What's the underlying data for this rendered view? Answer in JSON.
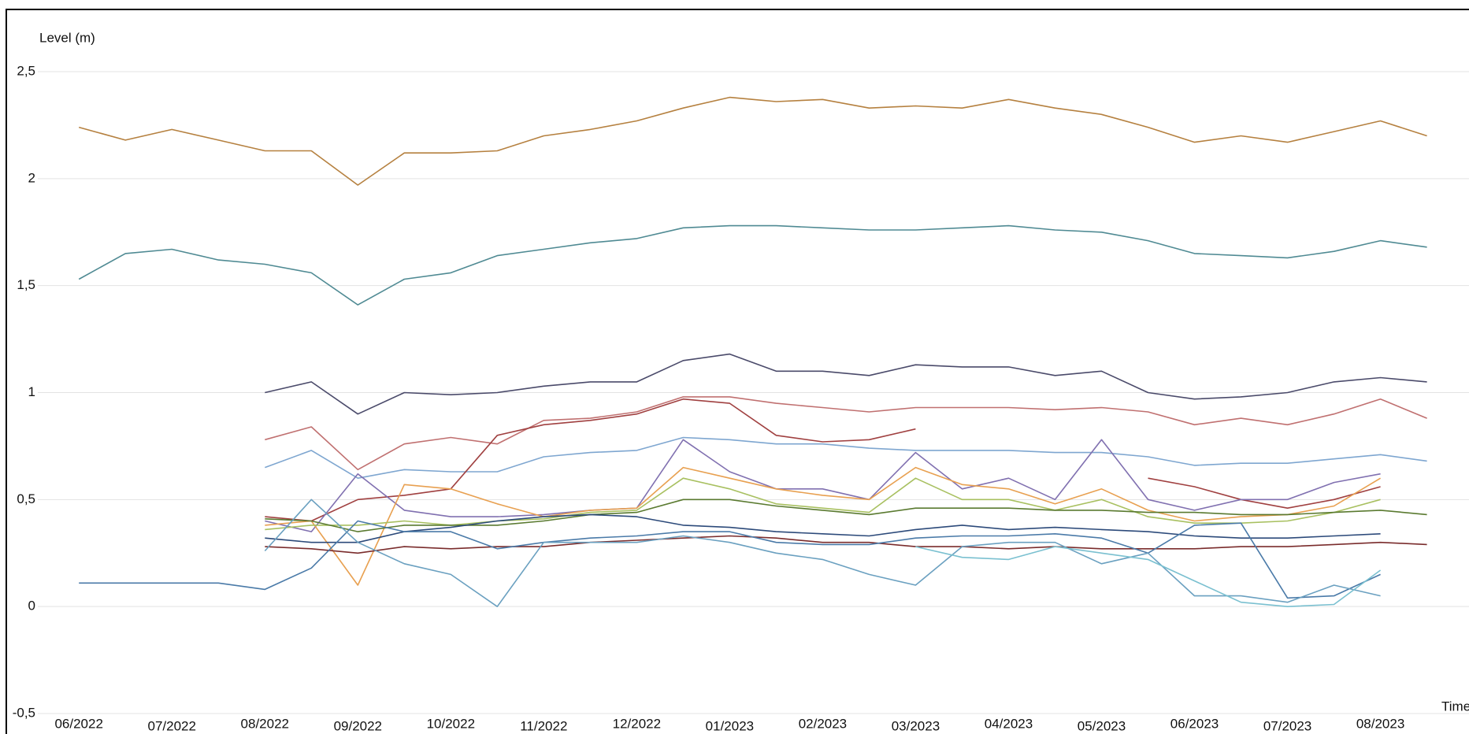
{
  "chart_data": {
    "type": "line",
    "y_label": "Level (m)",
    "x_label": "Time",
    "grid": true,
    "xlim": [
      -0.4,
      14.8
    ],
    "ylim": [
      -0.5,
      2.5
    ],
    "xticks": [
      {
        "value": 0,
        "label": "06/2022"
      },
      {
        "value": 1,
        "label": "07/2022"
      },
      {
        "value": 2,
        "label": "08/2022"
      },
      {
        "value": 3,
        "label": "09/2022"
      },
      {
        "value": 4,
        "label": "10/2022"
      },
      {
        "value": 5,
        "label": "11/2022"
      },
      {
        "value": 6,
        "label": "12/2022"
      },
      {
        "value": 7,
        "label": "01/2023"
      },
      {
        "value": 8,
        "label": "02/2023"
      },
      {
        "value": 9,
        "label": "03/2023"
      },
      {
        "value": 10,
        "label": "04/2023"
      },
      {
        "value": 11,
        "label": "05/2023"
      },
      {
        "value": 12,
        "label": "06/2023"
      },
      {
        "value": 13,
        "label": "07/2023"
      },
      {
        "value": 14,
        "label": "08/2023"
      }
    ],
    "yticks": [
      {
        "value": -0.5,
        "label": "-0,5"
      },
      0,
      {
        "value": 0.5,
        "label": "0,5"
      },
      1,
      {
        "value": 1.5,
        "label": "1,5"
      },
      2,
      {
        "value": 2.5,
        "label": "2,5"
      }
    ],
    "x": [
      0,
      0.5,
      1,
      1.5,
      2,
      2.5,
      3,
      3.5,
      4,
      4.5,
      5,
      5.5,
      6,
      6.5,
      7,
      7.5,
      8,
      8.5,
      9,
      9.5,
      10,
      10.5,
      11,
      11.5,
      12,
      12.5,
      13,
      13.5,
      14,
      14.5
    ],
    "series": [
      {
        "color": "#b5803f",
        "values": [
          2.24,
          2.18,
          2.23,
          2.18,
          2.13,
          2.13,
          1.97,
          2.12,
          2.12,
          2.13,
          2.2,
          2.23,
          2.27,
          2.33,
          2.38,
          2.36,
          2.37,
          2.33,
          2.34,
          2.33,
          2.37,
          2.33,
          2.3,
          2.24,
          2.17,
          2.2,
          2.17,
          2.22,
          2.27,
          2.2
        ]
      },
      {
        "color": "#4f8a93",
        "values": [
          1.53,
          1.65,
          1.67,
          1.62,
          1.6,
          1.56,
          1.41,
          1.53,
          1.56,
          1.64,
          1.67,
          1.7,
          1.72,
          1.77,
          1.78,
          1.78,
          1.77,
          1.76,
          1.76,
          1.77,
          1.78,
          1.76,
          1.75,
          1.71,
          1.65,
          1.64,
          1.63,
          1.66,
          1.71,
          1.68
        ]
      },
      {
        "color": "#4a4a6a",
        "values": [
          null,
          null,
          null,
          null,
          1.0,
          1.05,
          0.9,
          1.0,
          0.99,
          1.0,
          1.03,
          1.05,
          1.05,
          1.15,
          1.18,
          1.1,
          1.1,
          1.08,
          1.13,
          1.12,
          1.12,
          1.08,
          1.1,
          1.0,
          0.97,
          0.98,
          1.0,
          1.05,
          1.07,
          1.05
        ]
      },
      {
        "color": "#c07070",
        "values": [
          null,
          null,
          null,
          null,
          0.78,
          0.84,
          0.64,
          0.76,
          0.79,
          0.76,
          0.87,
          0.88,
          0.91,
          0.98,
          0.98,
          0.95,
          0.93,
          0.91,
          0.93,
          0.93,
          0.93,
          0.92,
          0.93,
          0.91,
          0.85,
          0.88,
          0.85,
          0.9,
          0.97,
          0.88
        ]
      },
      {
        "color": "#7ea6d0",
        "values": [
          null,
          null,
          null,
          null,
          0.65,
          0.73,
          0.6,
          0.64,
          0.63,
          0.63,
          0.7,
          0.72,
          0.73,
          0.79,
          0.78,
          0.76,
          0.76,
          0.74,
          0.73,
          0.73,
          0.73,
          0.72,
          0.72,
          0.7,
          0.66,
          0.67,
          0.67,
          0.69,
          0.71,
          0.68
        ]
      },
      {
        "color": "#a04040",
        "values": [
          null,
          null,
          null,
          null,
          0.42,
          0.4,
          0.5,
          0.52,
          0.55,
          0.8,
          0.85,
          0.87,
          0.9,
          0.97,
          0.95,
          0.8,
          0.77,
          0.78,
          0.83,
          null,
          null,
          null,
          null,
          0.6,
          0.56,
          0.5,
          0.46,
          0.5,
          0.56,
          null
        ]
      },
      {
        "color": "#8070b0",
        "values": [
          null,
          null,
          null,
          null,
          0.4,
          0.35,
          0.62,
          0.45,
          0.42,
          0.42,
          0.43,
          0.45,
          0.46,
          0.78,
          0.63,
          0.55,
          0.55,
          0.5,
          0.72,
          0.55,
          0.6,
          0.5,
          0.78,
          0.5,
          0.45,
          0.5,
          0.5,
          0.58,
          0.62,
          null
        ]
      },
      {
        "color": "#e8a050",
        "values": [
          null,
          null,
          null,
          null,
          0.38,
          0.4,
          0.1,
          0.57,
          0.55,
          0.48,
          0.42,
          0.45,
          0.46,
          0.65,
          0.6,
          0.55,
          0.52,
          0.5,
          0.65,
          0.57,
          0.55,
          0.48,
          0.55,
          0.45,
          0.4,
          0.42,
          0.43,
          0.47,
          0.6,
          null
        ]
      },
      {
        "color": "#a8c060",
        "values": [
          null,
          null,
          null,
          null,
          0.36,
          0.38,
          0.38,
          0.4,
          0.38,
          0.4,
          0.41,
          0.44,
          0.45,
          0.6,
          0.55,
          0.48,
          0.46,
          0.44,
          0.6,
          0.5,
          0.5,
          0.45,
          0.5,
          0.42,
          0.39,
          0.39,
          0.4,
          0.44,
          0.5,
          null
        ]
      },
      {
        "color": "#5a7a30",
        "values": [
          null,
          null,
          null,
          null,
          0.41,
          0.4,
          0.35,
          0.38,
          0.38,
          0.38,
          0.4,
          0.43,
          0.44,
          0.5,
          0.5,
          0.47,
          0.45,
          0.43,
          0.46,
          0.46,
          0.46,
          0.45,
          0.45,
          0.44,
          0.44,
          0.43,
          0.43,
          0.44,
          0.45,
          0.43
        ]
      },
      {
        "color": "#2c4a7a",
        "values": [
          null,
          null,
          null,
          null,
          0.32,
          0.3,
          0.3,
          0.35,
          0.37,
          0.4,
          0.42,
          0.43,
          0.42,
          0.38,
          0.37,
          0.35,
          0.34,
          0.33,
          0.36,
          0.38,
          0.36,
          0.37,
          0.36,
          0.35,
          0.33,
          0.32,
          0.32,
          0.33,
          0.34,
          null
        ]
      },
      {
        "color": "#7a2c2c",
        "values": [
          null,
          null,
          null,
          null,
          0.28,
          0.27,
          0.25,
          0.28,
          0.27,
          0.28,
          0.28,
          0.3,
          0.31,
          0.32,
          0.33,
          0.32,
          0.3,
          0.3,
          0.28,
          0.28,
          0.27,
          0.28,
          0.27,
          0.27,
          0.27,
          0.28,
          0.28,
          0.29,
          0.3,
          0.29
        ]
      },
      {
        "color": "#4a7aa8",
        "values": [
          0.11,
          0.11,
          0.11,
          0.11,
          0.08,
          0.18,
          0.4,
          0.35,
          0.35,
          0.27,
          0.3,
          0.32,
          0.33,
          0.35,
          0.35,
          0.3,
          0.29,
          0.29,
          0.32,
          0.33,
          0.33,
          0.34,
          0.32,
          0.25,
          0.38,
          0.39,
          0.04,
          0.05,
          0.15,
          null
        ]
      },
      {
        "color": "#6aa0c0",
        "values": [
          null,
          null,
          null,
          null,
          0.26,
          0.5,
          0.3,
          0.2,
          0.15,
          0.0,
          0.3,
          0.3,
          0.3,
          0.33,
          0.3,
          0.25,
          0.22,
          0.15,
          0.1,
          0.28,
          0.3,
          0.3,
          0.2,
          0.25,
          0.05,
          0.05,
          0.02,
          0.1,
          0.05,
          null
        ]
      },
      {
        "color": "#7ac0d0",
        "values": [
          null,
          null,
          null,
          null,
          null,
          null,
          null,
          null,
          null,
          null,
          null,
          null,
          null,
          null,
          null,
          null,
          null,
          null,
          0.28,
          0.23,
          0.22,
          0.28,
          0.25,
          0.22,
          0.12,
          0.02,
          0.0,
          0.01,
          0.17,
          null
        ]
      }
    ]
  }
}
